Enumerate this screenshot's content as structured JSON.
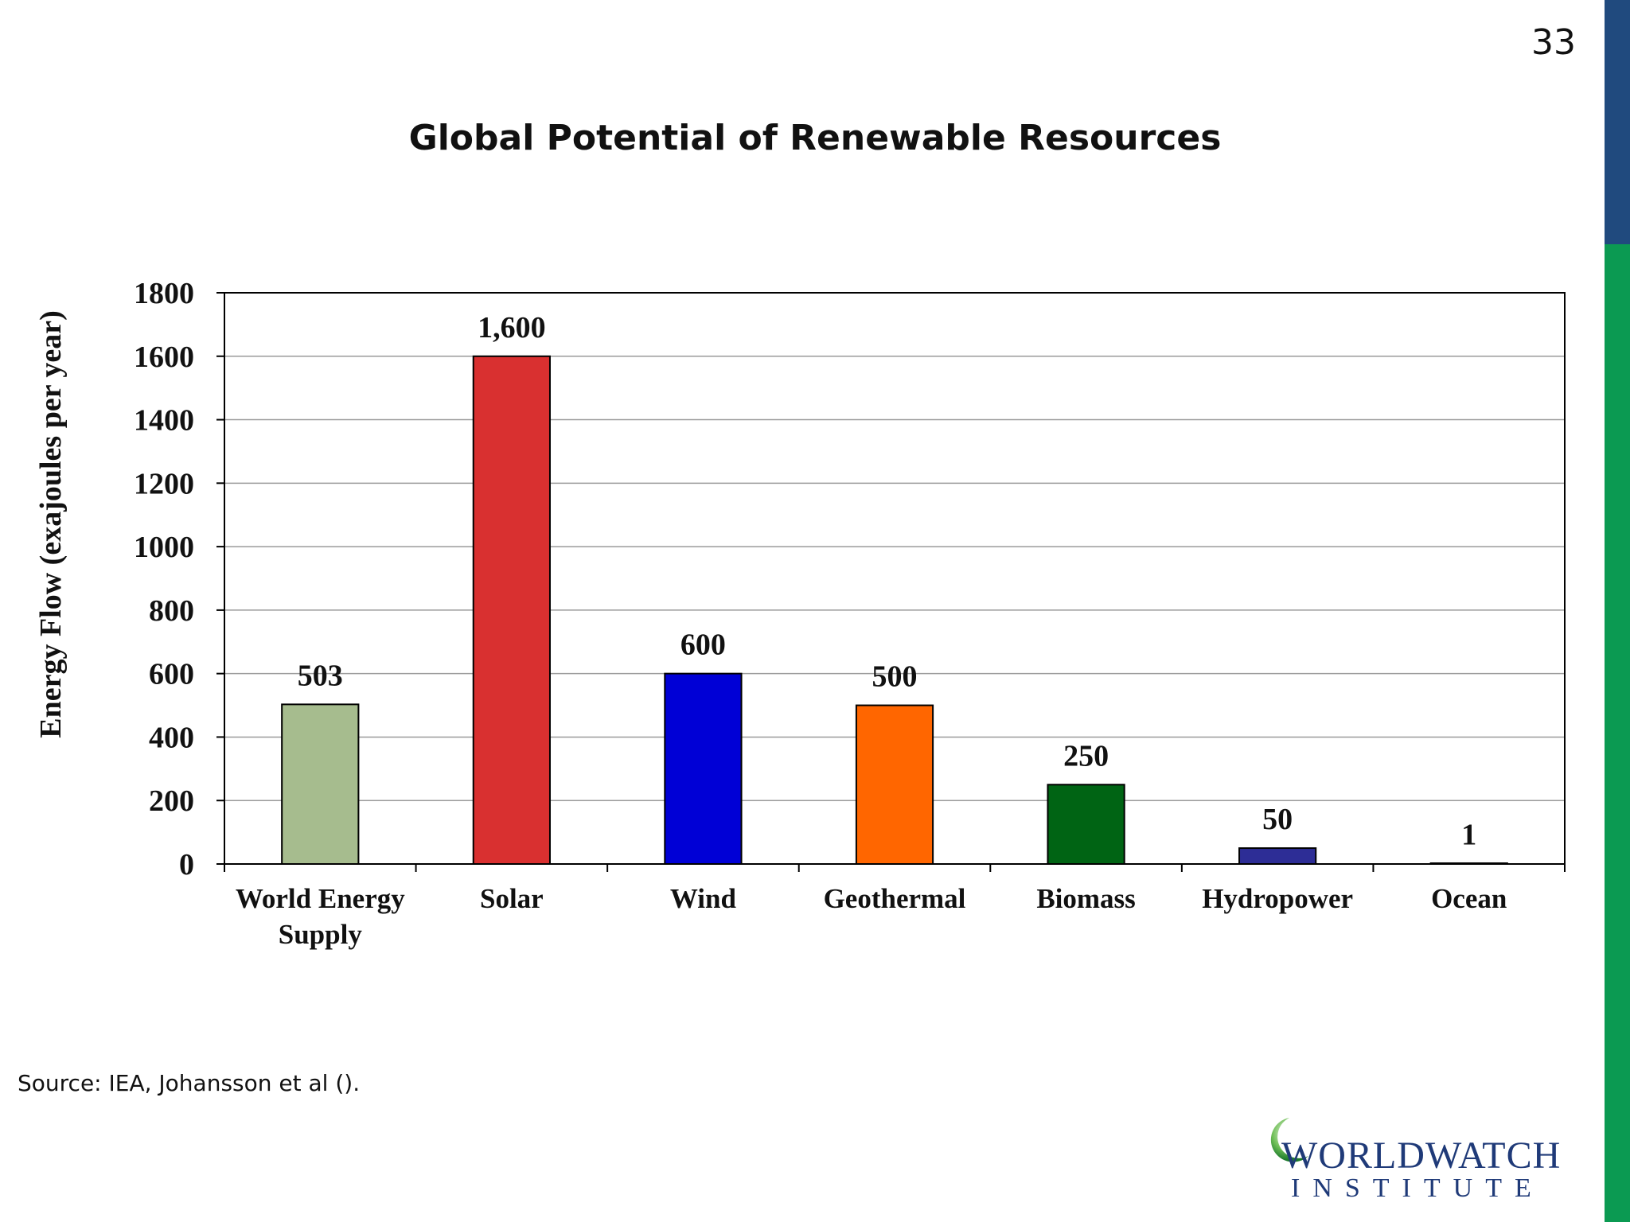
{
  "slide": {
    "page_number": "33",
    "title": "Global Potential of Renewable Resources",
    "source": "Source: IEA, Johansson et al ().",
    "logo": {
      "line1": "WORLDWATCH",
      "line2": "INSTITUTE"
    },
    "colors": {
      "side_bar_top": "#204a7e",
      "side_bar_bottom": "#0b9a52"
    }
  },
  "chart_data": {
    "type": "bar",
    "ylabel": "Energy Flow (exajoules per year)",
    "ylim": [
      0,
      1800
    ],
    "yticks": [
      0,
      200,
      400,
      600,
      800,
      1000,
      1200,
      1400,
      1600,
      1800
    ],
    "grid": true,
    "categories": [
      [
        "World Energy",
        "Supply"
      ],
      [
        "Solar"
      ],
      [
        "Wind"
      ],
      [
        "Geothermal"
      ],
      [
        "Biomass"
      ],
      [
        "Hydropower"
      ],
      [
        "Ocean"
      ]
    ],
    "values": [
      503,
      1600,
      600,
      500,
      250,
      50,
      1
    ],
    "value_labels": [
      "503",
      "1,600",
      "600",
      "500",
      "250",
      "50",
      "1"
    ],
    "colors": [
      "#a6bc8e",
      "#d93030",
      "#0000d6",
      "#ff6600",
      "#006414",
      "#2d2d96",
      "#1a2a1a"
    ]
  }
}
